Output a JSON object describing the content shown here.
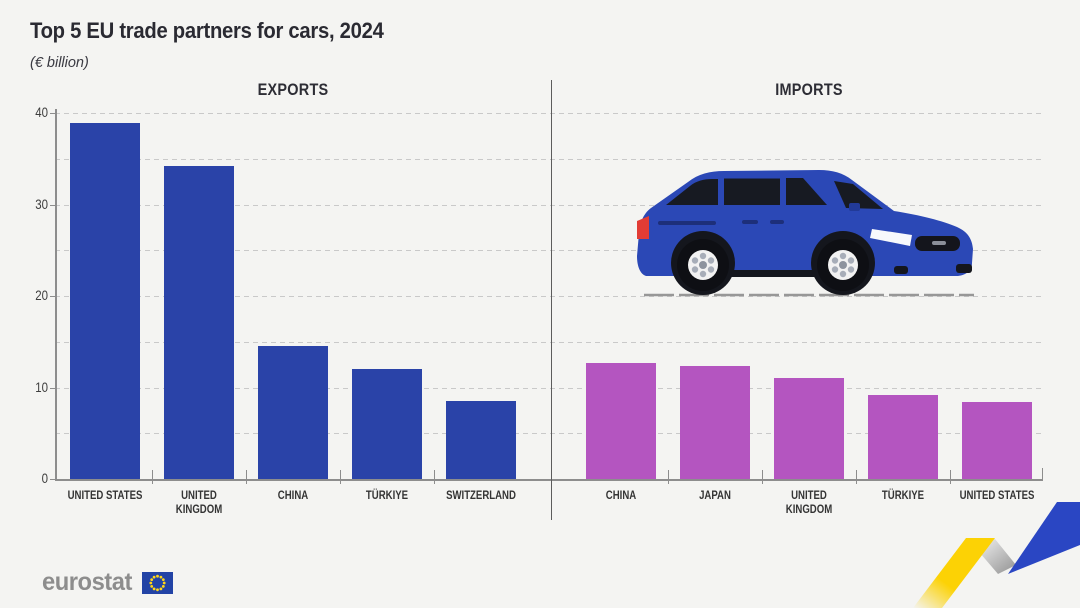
{
  "header": {
    "title": "Top 5 EU trade partners for cars, 2024",
    "subtitle": "(€ billion)"
  },
  "chart_data": {
    "type": "bar",
    "title": "Top 5 EU trade partners for cars, 2024",
    "unit": "€ billion",
    "ylim": [
      0,
      40
    ],
    "yticks": [
      0,
      10,
      20,
      30,
      40
    ],
    "gridline_step": 5,
    "grid": "dashed horizontal",
    "panels": [
      {
        "label": "EXPORTS",
        "bar_color": "#2a43a8",
        "categories": [
          "UNITED STATES",
          "UNITED KINGDOM",
          "CHINA",
          "TÜRKIYE",
          "SWITZERLAND"
        ],
        "values": [
          38.9,
          34.2,
          14.5,
          12.0,
          8.5
        ]
      },
      {
        "label": "IMPORTS",
        "bar_color": "#b455c0",
        "categories": [
          "CHINA",
          "JAPAN",
          "UNITED KINGDOM",
          "TÜRKIYE",
          "UNITED STATES"
        ],
        "values": [
          12.7,
          12.3,
          11.0,
          9.2,
          8.4
        ]
      }
    ]
  },
  "decorations": {
    "car_icon": "blue-minivan-side-view",
    "car_body_color": "#2b48b6",
    "ribbon_colors": {
      "yellow": "#fcd205",
      "gray": "#b8b8b8",
      "blue": "#2a46c3"
    }
  },
  "footer": {
    "logo_text": "eurostat",
    "flag_color": "#2243a5",
    "star_color": "#ffd617"
  }
}
